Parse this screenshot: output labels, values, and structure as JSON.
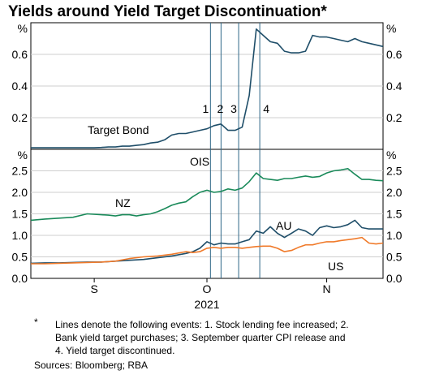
{
  "title": "Yields around Yield Target Discontinuation*",
  "footnote": {
    "marker": "*",
    "lines": [
      "Lines denote the following events: 1. Stock lending fee increased; 2.",
      "Bank yield target purchases; 3. September quarter CPI release and",
      "4. Yield target discontinued."
    ]
  },
  "sources": "Sources: Bloomberg; RBA",
  "colors": {
    "navy": "#1f4e69",
    "green": "#1a8a5a",
    "orange": "#f07a2a",
    "grid": "#cfcfcf",
    "event_line": "#2f6787"
  },
  "chart_data": [
    {
      "type": "line",
      "panel": "top",
      "unit_left": "%",
      "unit_right": "%",
      "ylim": [
        0,
        0.8
      ],
      "yticks": [
        0.2,
        0.4,
        0.6
      ],
      "ytick_labels": [
        "0.2",
        "0.4",
        "0.6"
      ],
      "xlim": [
        0,
        100
      ],
      "event_lines": [
        {
          "label": "1",
          "x": 51
        },
        {
          "label": "2",
          "x": 54
        },
        {
          "label": "3",
          "x": 59
        },
        {
          "label": "4",
          "x": 65
        }
      ],
      "series": [
        {
          "name": "Target Bond",
          "color": "#1f4e69",
          "x": [
            0,
            4,
            8,
            12,
            16,
            18,
            20,
            22,
            24,
            26,
            28,
            30,
            32,
            34,
            36,
            38,
            40,
            42,
            44,
            46,
            48,
            50,
            52,
            54,
            56,
            58,
            60,
            62,
            64,
            66,
            68,
            70,
            72,
            74,
            76,
            78,
            80,
            82,
            84,
            86,
            88,
            90,
            92,
            94,
            96,
            98,
            100
          ],
          "y": [
            0.01,
            0.01,
            0.01,
            0.01,
            0.01,
            0.01,
            0.012,
            0.015,
            0.015,
            0.02,
            0.02,
            0.025,
            0.03,
            0.04,
            0.045,
            0.06,
            0.09,
            0.1,
            0.1,
            0.11,
            0.12,
            0.13,
            0.15,
            0.16,
            0.12,
            0.12,
            0.14,
            0.34,
            0.76,
            0.72,
            0.68,
            0.67,
            0.62,
            0.61,
            0.61,
            0.62,
            0.72,
            0.71,
            0.71,
            0.7,
            0.69,
            0.68,
            0.7,
            0.68,
            0.67,
            0.66,
            0.65
          ]
        }
      ],
      "series_labels": [
        {
          "text": "Target Bond",
          "series": 0
        }
      ]
    },
    {
      "type": "line",
      "panel": "bottom",
      "unit_left": "%",
      "unit_right": "%",
      "ylim": [
        0,
        3.0
      ],
      "yticks": [
        0,
        0.5,
        1.0,
        1.5,
        2.0,
        2.5
      ],
      "ytick_labels": [
        "0.0",
        "0.5",
        "1.0",
        "1.5",
        "2.0",
        "2.5"
      ],
      "xlim": [
        0,
        100
      ],
      "x_tick_labels": [
        {
          "label": "S",
          "x": 18
        },
        {
          "label": "O",
          "x": 50
        },
        {
          "label": "N",
          "x": 84
        }
      ],
      "x_axis_year": "2021",
      "event_lines_label": "OIS",
      "event_lines": [
        {
          "label": "1",
          "x": 51
        },
        {
          "label": "2",
          "x": 54
        },
        {
          "label": "3",
          "x": 59
        },
        {
          "label": "4",
          "x": 65
        }
      ],
      "series": [
        {
          "name": "NZ",
          "color": "#1a8a5a",
          "x": [
            0,
            4,
            8,
            12,
            16,
            20,
            22,
            24,
            26,
            28,
            30,
            32,
            34,
            36,
            38,
            40,
            42,
            44,
            46,
            48,
            50,
            52,
            54,
            56,
            58,
            60,
            62,
            64,
            66,
            68,
            70,
            72,
            74,
            76,
            78,
            80,
            82,
            84,
            86,
            88,
            90,
            92,
            94,
            96,
            98,
            100
          ],
          "y": [
            1.35,
            1.38,
            1.4,
            1.42,
            1.5,
            1.48,
            1.47,
            1.45,
            1.48,
            1.48,
            1.45,
            1.48,
            1.5,
            1.55,
            1.62,
            1.7,
            1.75,
            1.78,
            1.9,
            2.0,
            2.05,
            2.0,
            2.02,
            2.08,
            2.05,
            2.1,
            2.25,
            2.45,
            2.32,
            2.3,
            2.28,
            2.32,
            2.32,
            2.35,
            2.38,
            2.35,
            2.37,
            2.45,
            2.5,
            2.52,
            2.55,
            2.42,
            2.3,
            2.3,
            2.28,
            2.27
          ]
        },
        {
          "name": "AU",
          "color": "#1f4e69",
          "x": [
            0,
            4,
            8,
            12,
            16,
            20,
            24,
            28,
            32,
            36,
            40,
            44,
            46,
            48,
            50,
            52,
            54,
            56,
            58,
            60,
            62,
            64,
            66,
            68,
            70,
            72,
            74,
            76,
            78,
            80,
            82,
            84,
            86,
            88,
            90,
            92,
            94,
            96,
            98,
            100
          ],
          "y": [
            0.35,
            0.36,
            0.36,
            0.37,
            0.38,
            0.38,
            0.4,
            0.42,
            0.44,
            0.48,
            0.52,
            0.58,
            0.62,
            0.7,
            0.85,
            0.78,
            0.82,
            0.8,
            0.8,
            0.85,
            0.9,
            1.1,
            1.05,
            1.2,
            1.05,
            0.95,
            1.05,
            1.15,
            1.1,
            1.0,
            1.18,
            1.22,
            1.18,
            1.2,
            1.25,
            1.35,
            1.18,
            1.15,
            1.15,
            1.15
          ]
        },
        {
          "name": "US",
          "color": "#f07a2a",
          "x": [
            0,
            4,
            8,
            12,
            16,
            20,
            24,
            28,
            32,
            36,
            40,
            44,
            46,
            48,
            50,
            52,
            54,
            56,
            58,
            60,
            62,
            64,
            66,
            68,
            70,
            72,
            74,
            76,
            78,
            80,
            82,
            84,
            86,
            88,
            90,
            92,
            94,
            96,
            98,
            100
          ],
          "y": [
            0.34,
            0.34,
            0.35,
            0.36,
            0.37,
            0.38,
            0.4,
            0.46,
            0.5,
            0.52,
            0.56,
            0.62,
            0.6,
            0.62,
            0.7,
            0.72,
            0.7,
            0.72,
            0.72,
            0.7,
            0.72,
            0.74,
            0.75,
            0.75,
            0.7,
            0.62,
            0.65,
            0.72,
            0.78,
            0.78,
            0.82,
            0.85,
            0.85,
            0.88,
            0.9,
            0.92,
            0.95,
            0.82,
            0.8,
            0.82
          ]
        }
      ],
      "series_labels": [
        {
          "text": "NZ",
          "series": 0
        },
        {
          "text": "AU",
          "series": 1
        },
        {
          "text": "US",
          "series": 2
        }
      ]
    }
  ]
}
